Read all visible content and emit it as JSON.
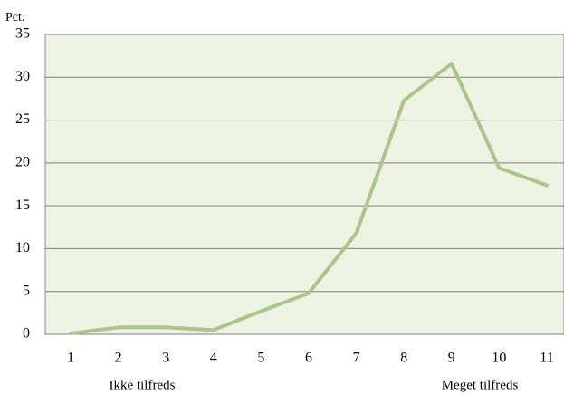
{
  "chart_data": {
    "type": "line",
    "y_label": "Pct.",
    "categories": [
      "1",
      "2",
      "3",
      "4",
      "5",
      "6",
      "7",
      "8",
      "9",
      "10",
      "11"
    ],
    "values": [
      0.1,
      0.8,
      0.8,
      0.5,
      2.7,
      4.8,
      11.8,
      27.3,
      31.6,
      19.4,
      17.4
    ],
    "color": "#a9c587",
    "ylim": [
      0,
      35
    ],
    "yticks": [
      0,
      5,
      10,
      15,
      20,
      25,
      30,
      35
    ],
    "grid": true,
    "annotations": [
      "Ikke tilfreds",
      "Meget tilfreds"
    ]
  }
}
